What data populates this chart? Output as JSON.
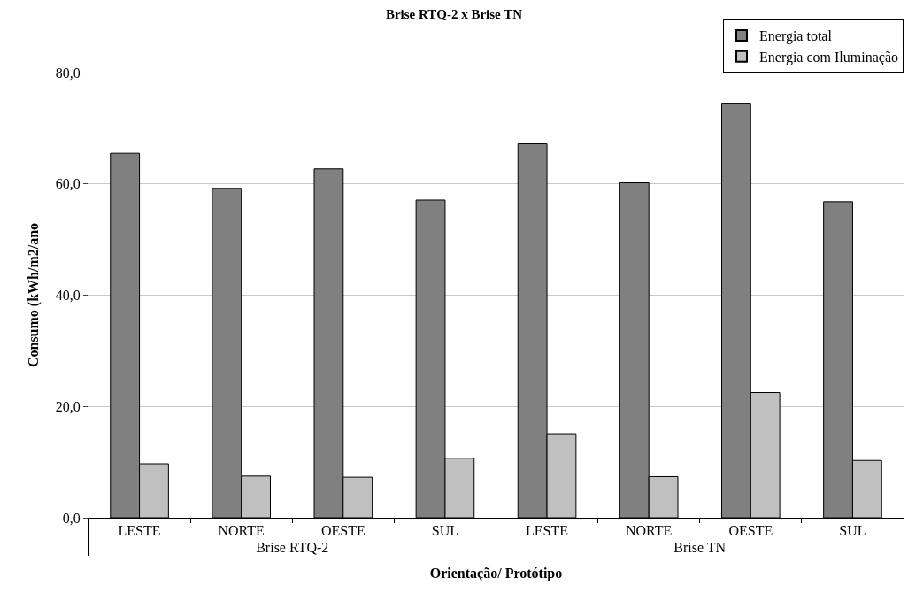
{
  "chart_data": {
    "type": "bar",
    "title": "Brise RTQ-2 x Brise TN",
    "xlabel": "Orientação/ Protótipo",
    "ylabel": "Consumo (kWh/m2/ano",
    "categories": [
      "LESTE",
      "NORTE",
      "OESTE",
      "SUL",
      "LESTE",
      "NORTE",
      "OESTE",
      "SUL"
    ],
    "annotations": [
      "Brise RTQ-2",
      "Brise TN"
    ],
    "series": [
      {
        "name": "Energia total",
        "color": "#808080",
        "values": [
          65.5,
          59.2,
          62.7,
          57.1,
          67.2,
          60.2,
          74.5,
          56.8
        ]
      },
      {
        "name": "Energia com Iluminação",
        "color": "#c0c0c0",
        "values": [
          9.7,
          7.5,
          7.3,
          10.7,
          15.1,
          7.4,
          22.5,
          10.3
        ]
      }
    ],
    "ylim": [
      0,
      80
    ],
    "yticks": [
      {
        "value": 0,
        "label": "0,0"
      },
      {
        "value": 20,
        "label": "20,0"
      },
      {
        "value": 40,
        "label": "40,0"
      },
      {
        "value": 60,
        "label": "60,0"
      },
      {
        "value": 80,
        "label": "80,0"
      }
    ],
    "grid": "y",
    "legend": "top right"
  }
}
